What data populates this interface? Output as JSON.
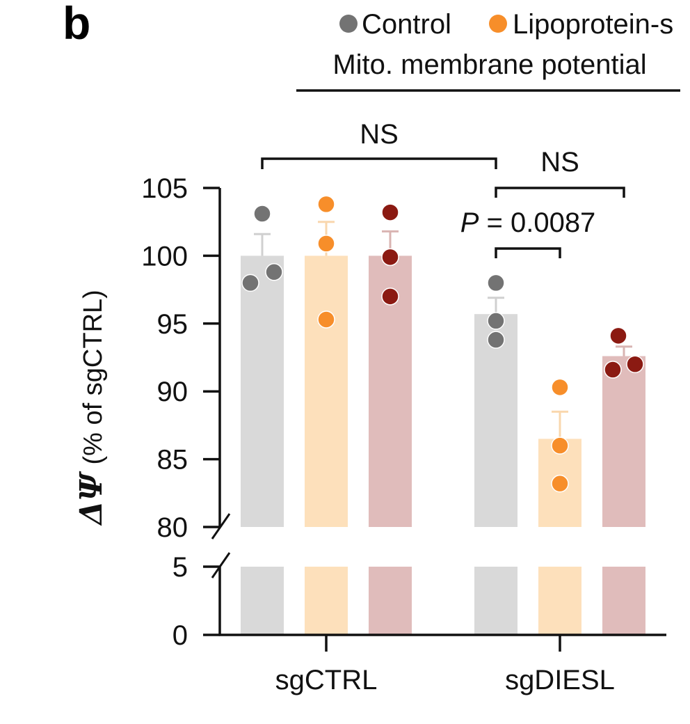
{
  "panel_label": "b",
  "chart_data": {
    "type": "bar",
    "title": "Mito. membrane potential",
    "ylabel_symbol": "ΔΨ",
    "ylabel": "(% of sgCTRL)",
    "xlabel": "",
    "categories": [
      "sgCTRL",
      "sgDIESL"
    ],
    "y_ticks": [
      "0",
      "5",
      "80",
      "85",
      "90",
      "95",
      "100",
      "105"
    ],
    "axis_break": {
      "lower": [
        0,
        5
      ],
      "upper": [
        80,
        105
      ]
    },
    "legend": [
      "Control",
      "Lipoprotein-s"
    ],
    "series": [
      {
        "name": "Control",
        "color": "#d9d9d9",
        "dot_color": "#737373",
        "err_color": "#d0d0d0",
        "values": [
          100,
          95.7
        ],
        "errors": [
          1.6,
          1.2
        ],
        "points": [
          [
            103.1,
            98.0,
            98.8
          ],
          [
            98.0,
            95.2,
            93.8
          ]
        ]
      },
      {
        "name": "Lipoprotein-s",
        "color": "#fde0bb",
        "dot_color": "#f78e2a",
        "err_color": "#f9d7ae",
        "values": [
          100,
          86.5
        ],
        "errors": [
          2.5,
          2.0
        ],
        "points": [
          [
            103.8,
            100.9,
            95.3
          ],
          [
            90.3,
            86.0,
            83.2
          ]
        ]
      },
      {
        "name": "",
        "color": "#e0bcbb",
        "dot_color": "#8b1a12",
        "err_color": "#d9b4b2",
        "values": [
          100,
          92.6
        ],
        "errors": [
          1.8,
          0.7
        ],
        "points": [
          [
            103.2,
            99.9,
            97.0
          ],
          [
            94.1,
            92.0,
            91.6
          ]
        ]
      }
    ],
    "annotations": [
      {
        "text": "NS",
        "from": [
          0,
          0
        ],
        "to": [
          1,
          0
        ],
        "level": "high"
      },
      {
        "text": "NS",
        "from": [
          1,
          0
        ],
        "to": [
          1,
          2
        ],
        "level": "mid"
      },
      {
        "text": "P = 0.0087",
        "from": [
          1,
          0
        ],
        "to": [
          1,
          1
        ],
        "level": "low"
      }
    ]
  }
}
